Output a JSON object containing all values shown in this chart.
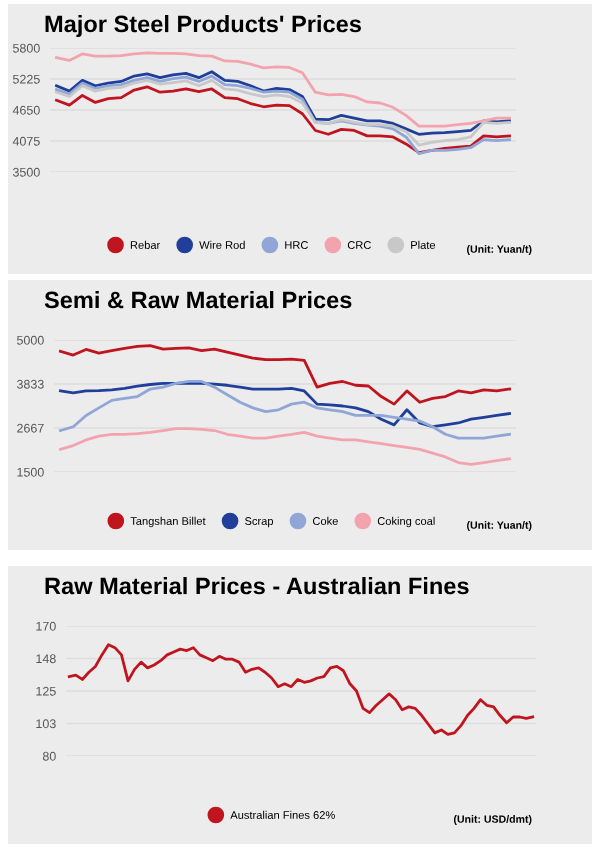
{
  "chart_data": [
    {
      "type": "line",
      "title": "Major Steel Products' Prices",
      "annotations": [
        "(Unit: Yuan/t)"
      ],
      "categories": [
        null,
        null,
        null,
        null,
        null,
        null,
        null,
        null,
        null,
        null,
        null,
        null,
        null,
        null,
        null,
        null,
        null,
        null,
        null,
        null,
        null,
        null,
        null,
        null,
        null,
        null,
        null,
        null,
        null,
        null,
        null,
        null,
        null,
        null,
        null,
        null
      ],
      "ylim": [
        3500,
        5800
      ],
      "yticks": [
        3500,
        4075,
        4650,
        5225,
        5800
      ],
      "grid": "y",
      "legend": "bottom",
      "tick_labels": "y",
      "marker": "none",
      "series": [
        {
          "name": "Rebar",
          "color": "#c0141e",
          "values": [
            4830,
            4740,
            4920,
            4790,
            4860,
            4880,
            5020,
            5080,
            4980,
            5000,
            5040,
            4990,
            5040,
            4880,
            4860,
            4770,
            4710,
            4740,
            4730,
            4580,
            4270,
            4200,
            4290,
            4270,
            4170,
            4170,
            4150,
            4020,
            3860,
            3900,
            3940,
            3960,
            3980,
            4170,
            4150,
            4170
          ]
        },
        {
          "name": "Wire Rod",
          "color": "#1f3f9a",
          "values": [
            5100,
            5000,
            5200,
            5100,
            5150,
            5180,
            5280,
            5320,
            5250,
            5300,
            5330,
            5250,
            5360,
            5200,
            5180,
            5100,
            5000,
            5050,
            5030,
            4900,
            4480,
            4470,
            4550,
            4500,
            4450,
            4450,
            4400,
            4300,
            4200,
            4220,
            4230,
            4250,
            4270,
            4450,
            4430,
            4450
          ]
        },
        {
          "name": "HRC",
          "color": "#8fa6d6",
          "values": [
            5030,
            4950,
            5150,
            5050,
            5100,
            5120,
            5200,
            5250,
            5180,
            5230,
            5260,
            5180,
            5280,
            5120,
            5100,
            5050,
            4980,
            5000,
            4980,
            4850,
            4420,
            4400,
            4450,
            4400,
            4370,
            4350,
            4300,
            4150,
            3840,
            3900,
            3900,
            3920,
            3950,
            4100,
            4080,
            4100
          ]
        },
        {
          "name": "CRC",
          "color": "#f2a3ae",
          "values": [
            5620,
            5570,
            5690,
            5650,
            5650,
            5660,
            5690,
            5710,
            5700,
            5700,
            5690,
            5660,
            5650,
            5560,
            5550,
            5500,
            5430,
            5450,
            5440,
            5340,
            4980,
            4930,
            4940,
            4900,
            4800,
            4780,
            4700,
            4550,
            4350,
            4350,
            4350,
            4380,
            4400,
            4450,
            4500,
            4500
          ]
        },
        {
          "name": "Plate",
          "color": "#c8c8c8",
          "values": [
            4980,
            4900,
            5100,
            5000,
            5050,
            5070,
            5150,
            5200,
            5130,
            5160,
            5190,
            5100,
            5200,
            5040,
            5020,
            4950,
            4900,
            4930,
            4900,
            4780,
            4420,
            4400,
            4470,
            4420,
            4380,
            4380,
            4350,
            4250,
            4000,
            4050,
            4080,
            4100,
            4150,
            4420,
            4400,
            4420
          ]
        }
      ]
    },
    {
      "type": "line",
      "title": "Semi & Raw Material Prices",
      "annotations": [
        "(Unit: Yuan/t)"
      ],
      "categories": [
        null,
        null,
        null,
        null,
        null,
        null,
        null,
        null,
        null,
        null,
        null,
        null,
        null,
        null,
        null,
        null,
        null,
        null,
        null,
        null,
        null,
        null,
        null,
        null,
        null,
        null,
        null,
        null,
        null,
        null,
        null,
        null,
        null,
        null,
        null,
        null
      ],
      "ylim": [
        1500,
        5000
      ],
      "yticks": [
        1500,
        2667,
        3833,
        5000
      ],
      "grid": "y",
      "legend": "bottom",
      "tick_labels": "y",
      "marker": "none",
      "series": [
        {
          "name": "Tangshan Billet",
          "color": "#c0141e",
          "values": [
            4700,
            4600,
            4750,
            4650,
            4720,
            4780,
            4830,
            4850,
            4760,
            4780,
            4790,
            4720,
            4760,
            4680,
            4600,
            4520,
            4480,
            4480,
            4490,
            4460,
            3750,
            3850,
            3900,
            3800,
            3780,
            3500,
            3300,
            3650,
            3350,
            3450,
            3500,
            3650,
            3600,
            3680,
            3650,
            3700
          ]
        },
        {
          "name": "Scrap",
          "color": "#1f3f9a",
          "values": [
            3650,
            3600,
            3650,
            3660,
            3680,
            3720,
            3780,
            3820,
            3850,
            3850,
            3860,
            3850,
            3830,
            3800,
            3750,
            3700,
            3700,
            3700,
            3720,
            3650,
            3300,
            3280,
            3250,
            3200,
            3100,
            2900,
            2750,
            3150,
            2800,
            2700,
            2750,
            2800,
            2900,
            2950,
            3000,
            3050
          ]
        },
        {
          "name": "Coke",
          "color": "#8fa6d6",
          "values": [
            2600,
            2700,
            3000,
            3200,
            3400,
            3450,
            3500,
            3700,
            3750,
            3850,
            3900,
            3900,
            3750,
            3550,
            3350,
            3200,
            3100,
            3150,
            3300,
            3350,
            3200,
            3150,
            3100,
            3000,
            3000,
            3000,
            2950,
            2900,
            2850,
            2700,
            2500,
            2400,
            2400,
            2400,
            2450,
            2500
          ]
        },
        {
          "name": "Coking coal",
          "color": "#f2a3ae",
          "values": [
            2100,
            2200,
            2350,
            2450,
            2500,
            2500,
            2520,
            2550,
            2600,
            2650,
            2650,
            2630,
            2600,
            2500,
            2450,
            2400,
            2400,
            2450,
            2500,
            2550,
            2450,
            2400,
            2350,
            2350,
            2300,
            2250,
            2200,
            2150,
            2100,
            2000,
            1900,
            1750,
            1700,
            1750,
            1800,
            1850
          ]
        }
      ]
    },
    {
      "type": "line",
      "title": "Raw Material Prices - Australian Fines",
      "annotations": [
        "(Unit: USD/dmt)"
      ],
      "categories": [
        null,
        null,
        null,
        null,
        null,
        null,
        null,
        null,
        null,
        null,
        null,
        null,
        null,
        null,
        null,
        null,
        null,
        null,
        null,
        null,
        null,
        null,
        null,
        null,
        null,
        null,
        null,
        null,
        null,
        null,
        null,
        null,
        null,
        null,
        null,
        null,
        null,
        null,
        null,
        null,
        null,
        null,
        null,
        null,
        null,
        null,
        null,
        null,
        null,
        null,
        null,
        null,
        null,
        null,
        null,
        null,
        null,
        null,
        null,
        null,
        null,
        null,
        null,
        null,
        null,
        null,
        null,
        null,
        null,
        null,
        null,
        null
      ],
      "ylim": [
        80,
        170
      ],
      "yticks": [
        80,
        {
          "value": 102.5,
          "label": "103"
        },
        125,
        {
          "value": 147.5,
          "label": "148"
        },
        170
      ],
      "grid": "y",
      "legend": "bottom",
      "tick_labels": "y",
      "marker": "none",
      "series": [
        {
          "name": "Australian Fines 62%",
          "color": "#c0141e",
          "values": [
            135,
            136,
            133,
            138,
            142,
            150,
            157,
            155,
            150,
            132,
            140,
            145,
            141,
            143,
            146,
            150,
            152,
            154,
            153,
            155,
            150,
            148,
            146,
            149,
            147,
            147,
            145,
            138,
            140,
            141,
            138,
            134,
            128,
            130,
            128,
            133,
            131,
            132,
            134,
            135,
            141,
            142,
            139,
            130,
            125,
            113,
            110,
            115,
            119,
            123,
            119,
            112,
            114,
            113,
            108,
            102,
            96,
            98,
            95,
            96,
            101,
            108,
            113,
            119,
            115,
            114,
            108,
            103,
            107,
            107,
            106,
            107
          ]
        }
      ]
    }
  ]
}
